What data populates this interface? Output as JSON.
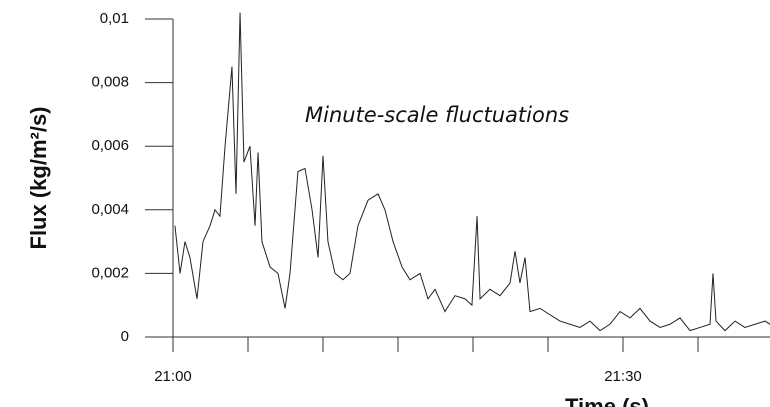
{
  "chart_data": {
    "type": "line",
    "ylabel": "Flux (kg/m²/s)",
    "xlabel": "Time (s)",
    "annotation": "Minute-scale fluctuations",
    "color": "#222222",
    "xlim": [
      0,
      39.8
    ],
    "ylim": [
      0,
      0.01
    ],
    "xticks": [
      {
        "value": 0,
        "label": "21:00"
      },
      5,
      10,
      15,
      20,
      25,
      {
        "value": 30,
        "label": "21:30"
      },
      35
    ],
    "yticks": [
      0,
      {
        "value": 0.002,
        "label": "0,002"
      },
      {
        "value": 0.004,
        "label": "0,004"
      },
      {
        "value": 0.006,
        "label": "0,006"
      },
      {
        "value": 0.008,
        "label": "0,008"
      },
      {
        "value": 0.01,
        "label": "0,01"
      }
    ],
    "x": [
      0.13,
      0.47,
      0.8,
      1.13,
      1.6,
      2,
      2.47,
      2.8,
      3.13,
      3.47,
      3.93,
      4.2,
      4.47,
      4.73,
      5.13,
      5.47,
      5.67,
      5.93,
      6.47,
      7,
      7.47,
      7.8,
      8.33,
      8.8,
      9.27,
      9.67,
      10,
      10.33,
      10.8,
      11.33,
      11.8,
      12.33,
      13,
      13.67,
      14.13,
      14.67,
      15.27,
      15.8,
      16.47,
      17,
      17.47,
      18.13,
      18.8,
      19.47,
      19.93,
      20.27,
      20.47,
      21.13,
      21.8,
      22.47,
      22.8,
      23.13,
      23.47,
      23.8,
      24.47,
      25.13,
      25.8,
      26.47,
      27.13,
      27.8,
      28.47,
      29.13,
      29.8,
      30.47,
      31.13,
      31.8,
      32.47,
      33.13,
      33.8,
      34.47,
      35.13,
      35.8,
      36,
      36.2,
      36.8,
      37.47,
      38.13,
      38.8,
      39.47,
      39.8
    ],
    "values": [
      0.0035,
      0.002,
      0.003,
      0.0025,
      0.0012,
      0.003,
      0.0035,
      0.004,
      0.0038,
      0.006,
      0.0085,
      0.0045,
      0.0102,
      0.0055,
      0.006,
      0.0035,
      0.0058,
      0.003,
      0.0022,
      0.002,
      0.0009,
      0.002,
      0.0052,
      0.0053,
      0.004,
      0.0025,
      0.0057,
      0.003,
      0.002,
      0.0018,
      0.002,
      0.0035,
      0.0043,
      0.0045,
      0.004,
      0.003,
      0.0022,
      0.0018,
      0.002,
      0.0012,
      0.0015,
      0.0008,
      0.0013,
      0.0012,
      0.001,
      0.0038,
      0.0012,
      0.0015,
      0.0013,
      0.0017,
      0.0027,
      0.0017,
      0.0025,
      0.0008,
      0.0009,
      0.0007,
      0.0005,
      0.0004,
      0.0003,
      0.0005,
      0.0002,
      0.0004,
      0.0008,
      0.0006,
      0.0009,
      0.0005,
      0.0003,
      0.0004,
      0.0006,
      0.0002,
      0.0003,
      0.0004,
      0.002,
      0.0005,
      0.0002,
      0.0005,
      0.0003,
      0.0004,
      0.0005,
      0.0004
    ]
  }
}
